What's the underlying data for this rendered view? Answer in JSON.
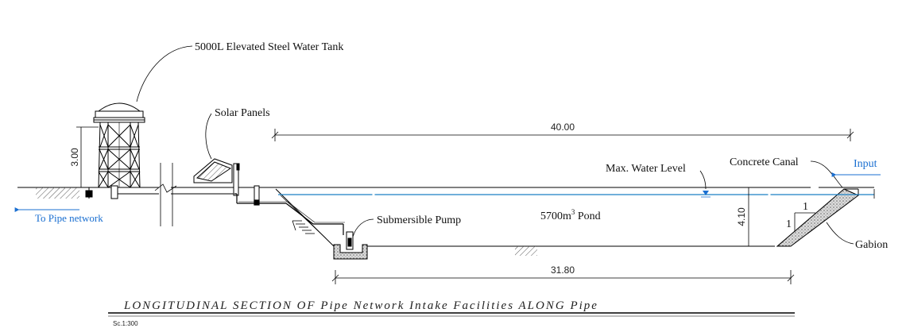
{
  "labels": {
    "tank": "5000L Elevated Steel Water Tank",
    "solar": "Solar Panels",
    "tank_height": "3.00",
    "pond_length_top": "40.00",
    "max_water_level": "Max. Water Level",
    "concrete_canal": "Concrete Canal",
    "input": "Input",
    "to_pipe_network": "To Pipe network",
    "submersible_pump": "Submersible Pump",
    "pond_prefix": "5700m",
    "pond_sup": "3",
    "pond_suffix": " Pond",
    "pond_depth": "4.10",
    "slope_v": "1",
    "slope_h": "1",
    "gabion": "Gabion",
    "pond_length_bottom": "31.80"
  },
  "title": "LONGITUDINAL SECTION OF Pipe Network Intake Facilities ALONG Pipe",
  "scale": "Sc.1:300",
  "colors": {
    "water_line": "#1a7fc4",
    "flow_arrow": "#1a6fd1",
    "gabion_fill": "#c9c9c9"
  }
}
